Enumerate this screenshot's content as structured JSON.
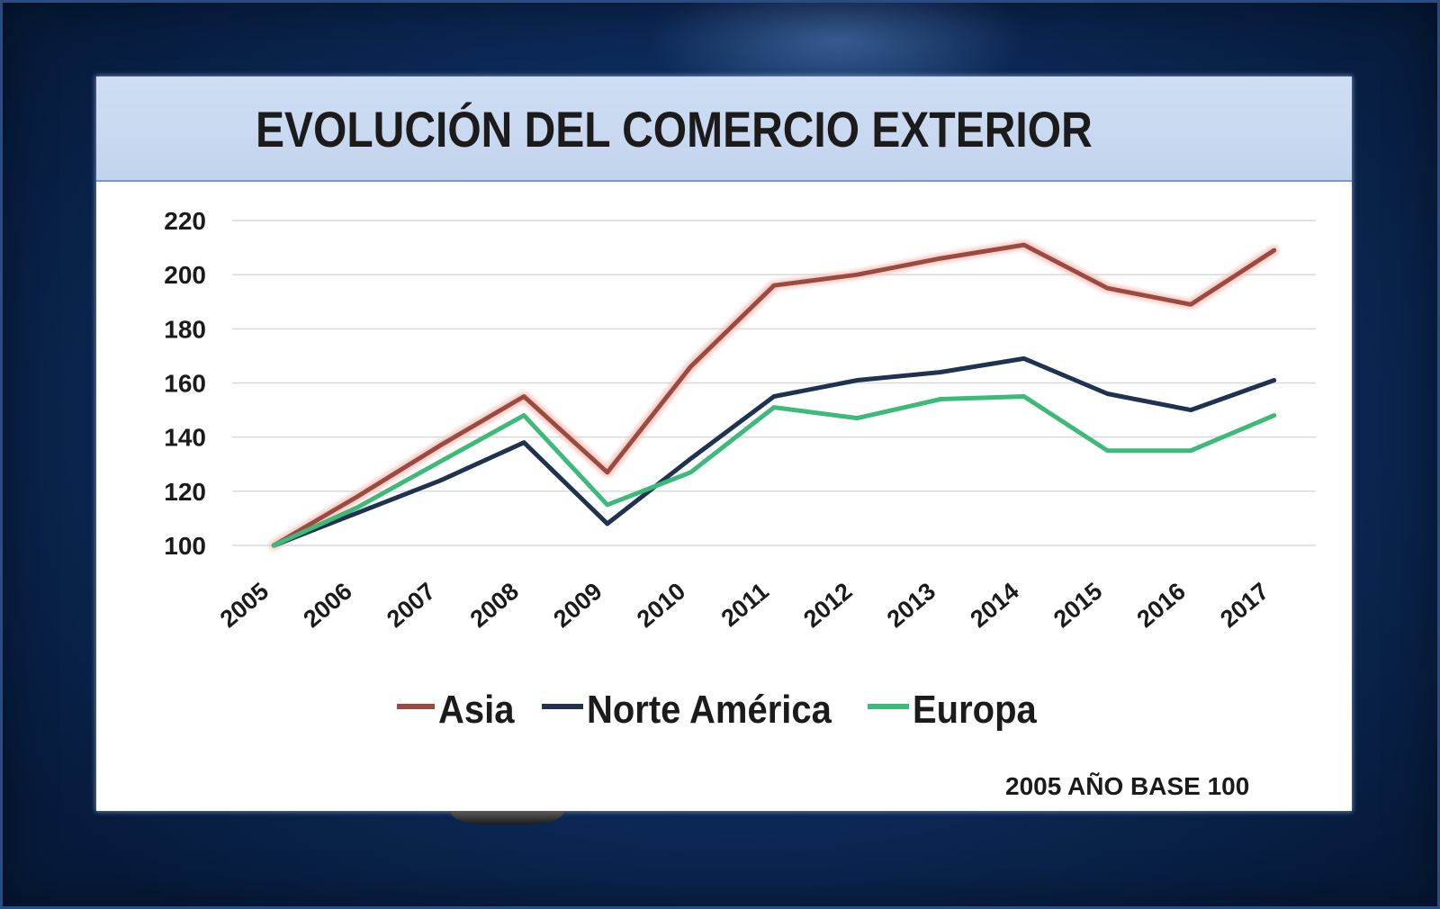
{
  "chart_data": {
    "type": "line",
    "title": "EVOLUCIÓN DEL COMERCIO EXTERIOR",
    "categories": [
      "2005",
      "2006",
      "2007",
      "2008",
      "2009",
      "2010",
      "2011",
      "2012",
      "2013",
      "2014",
      "2015",
      "2016",
      "2017"
    ],
    "series": [
      {
        "name": "Asia",
        "color": "#9c4a40",
        "values": [
          100,
          118,
          137,
          155,
          127,
          166,
          196,
          200,
          206,
          211,
          195,
          189,
          209
        ]
      },
      {
        "name": "Norte América",
        "color": "#1f3350",
        "values": [
          100,
          112,
          124,
          138,
          108,
          132,
          155,
          161,
          164,
          169,
          156,
          150,
          161
        ]
      },
      {
        "name": "Europa",
        "color": "#3dba7a",
        "values": [
          100,
          114,
          131,
          148,
          115,
          127,
          151,
          147,
          154,
          155,
          135,
          135,
          148
        ]
      }
    ],
    "ylim": [
      100,
      220
    ],
    "yticks": [
      100,
      120,
      140,
      160,
      180,
      200,
      220
    ],
    "grid": true,
    "legend": "bottom",
    "note": "2005 AÑO BASE 100"
  }
}
